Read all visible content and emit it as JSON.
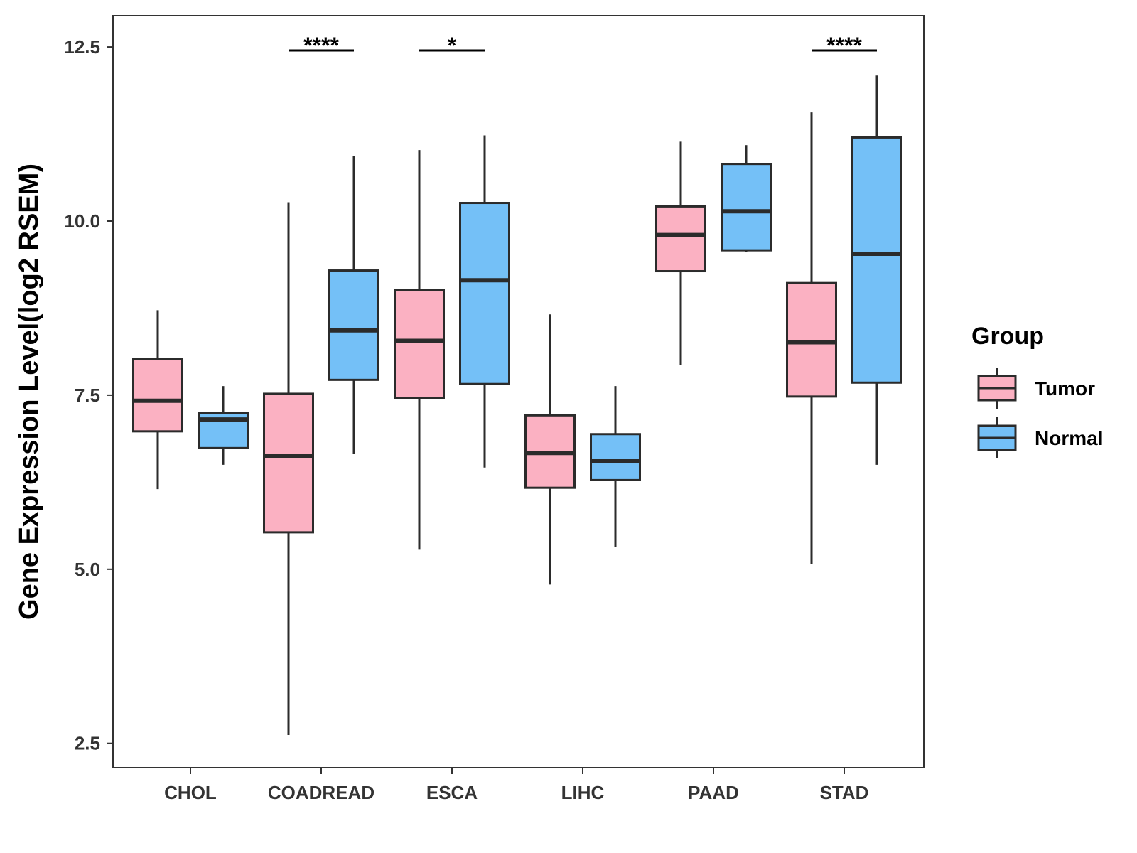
{
  "chart_data": {
    "type": "boxplot",
    "title": "",
    "xlabel": "",
    "ylabel": "Gene Expression Level(log2 RSEM)",
    "ylim": [
      2.15,
      12.95
    ],
    "yticks": [
      2.5,
      5.0,
      7.5,
      10.0,
      12.5
    ],
    "ytick_labels": [
      "2.5",
      "5.0",
      "7.5",
      "10.0",
      "12.5"
    ],
    "grid": false,
    "legend": {
      "title": "Group",
      "position": "right"
    },
    "categories": [
      "CHOL",
      "COADREAD",
      "ESCA",
      "LIHC",
      "PAAD",
      "STAD"
    ],
    "series": [
      {
        "name": "Tumor",
        "color": "#FBB1C2",
        "boxes": [
          {
            "whisker_low": 6.15,
            "q1": 6.98,
            "median": 7.42,
            "q3": 8.02,
            "whisker_high": 8.72
          },
          {
            "whisker_low": 2.62,
            "q1": 5.53,
            "median": 6.63,
            "q3": 7.52,
            "whisker_high": 10.27
          },
          {
            "whisker_low": 5.28,
            "q1": 7.46,
            "median": 8.28,
            "q3": 9.01,
            "whisker_high": 11.02
          },
          {
            "whisker_low": 4.78,
            "q1": 6.17,
            "median": 6.67,
            "q3": 7.21,
            "whisker_high": 8.66
          },
          {
            "whisker_low": 7.93,
            "q1": 9.28,
            "median": 9.8,
            "q3": 10.21,
            "whisker_high": 11.14
          },
          {
            "whisker_low": 5.07,
            "q1": 7.48,
            "median": 8.26,
            "q3": 9.11,
            "whisker_high": 11.56
          }
        ]
      },
      {
        "name": "Normal",
        "color": "#74C0F7",
        "boxes": [
          {
            "whisker_low": 6.5,
            "q1": 6.74,
            "median": 7.15,
            "q3": 7.24,
            "whisker_high": 7.63
          },
          {
            "whisker_low": 6.66,
            "q1": 7.72,
            "median": 8.43,
            "q3": 9.29,
            "whisker_high": 10.93
          },
          {
            "whisker_low": 6.46,
            "q1": 7.66,
            "median": 9.15,
            "q3": 10.26,
            "whisker_high": 11.23
          },
          {
            "whisker_low": 5.32,
            "q1": 6.28,
            "median": 6.55,
            "q3": 6.94,
            "whisker_high": 7.63
          },
          {
            "whisker_low": 9.56,
            "q1": 9.58,
            "median": 10.14,
            "q3": 10.82,
            "whisker_high": 11.09
          },
          {
            "whisker_low": 6.5,
            "q1": 7.68,
            "median": 9.53,
            "q3": 11.2,
            "whisker_high": 12.09
          }
        ]
      }
    ],
    "annotations": [
      {
        "category": "COADREAD",
        "label": "****",
        "y": 12.45
      },
      {
        "category": "ESCA",
        "label": "*",
        "y": 12.45
      },
      {
        "category": "STAD",
        "label": "****",
        "y": 12.45
      }
    ]
  }
}
